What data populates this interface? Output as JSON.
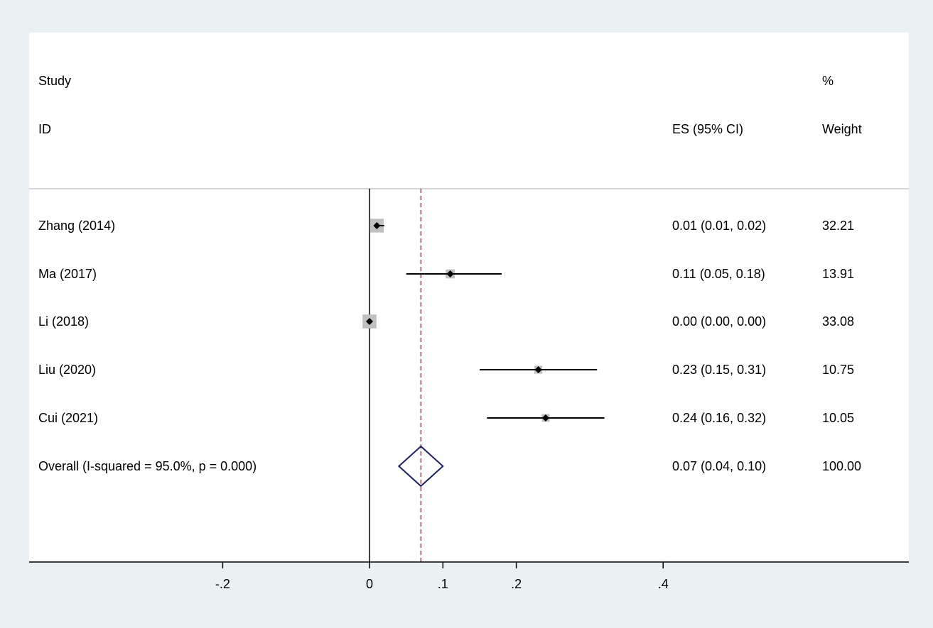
{
  "chart_data": {
    "type": "forest",
    "headers": {
      "study_line1": "Study",
      "study_line2": "ID",
      "es": "ES (95% CI)",
      "weight_line1": "%",
      "weight_line2": "Weight"
    },
    "studies": [
      {
        "label": "Zhang (2014)",
        "es": 0.01,
        "lower": 0.01,
        "upper": 0.02,
        "es_text": "0.01 (0.01, 0.02)",
        "weight": 32.21,
        "weight_text": "32.21"
      },
      {
        "label": "Ma (2017)",
        "es": 0.11,
        "lower": 0.05,
        "upper": 0.18,
        "es_text": "0.11 (0.05, 0.18)",
        "weight": 13.91,
        "weight_text": "13.91"
      },
      {
        "label": "Li (2018)",
        "es": 0.0,
        "lower": 0.0,
        "upper": 0.0,
        "es_text": "0.00 (0.00, 0.00)",
        "weight": 33.08,
        "weight_text": "33.08"
      },
      {
        "label": "Liu (2020)",
        "es": 0.23,
        "lower": 0.15,
        "upper": 0.31,
        "es_text": "0.23 (0.15, 0.31)",
        "weight": 10.75,
        "weight_text": "10.75"
      },
      {
        "label": "Cui (2021)",
        "es": 0.24,
        "lower": 0.16,
        "upper": 0.32,
        "es_text": "0.24 (0.16, 0.32)",
        "weight": 10.05,
        "weight_text": "10.05"
      }
    ],
    "overall": {
      "label": "Overall  (I-squared = 95.0%, p = 0.000)",
      "es": 0.07,
      "lower": 0.04,
      "upper": 0.1,
      "es_text": "0.07 (0.04, 0.10)",
      "weight_text": "100.00"
    },
    "xticks": [
      {
        "value": -0.2,
        "label": "-.2"
      },
      {
        "value": 0,
        "label": "0"
      },
      {
        "value": 0.1,
        "label": ".1"
      },
      {
        "value": 0.2,
        "label": ".2"
      },
      {
        "value": 0.4,
        "label": ".4"
      }
    ],
    "null_line": 0,
    "colors": {
      "background": "#eaf1f3",
      "plot_area": "#ffffff",
      "weight_box": "#bfbfbf",
      "overall_diamond": "#1a1f6e",
      "overall_line": "#a0202a"
    }
  }
}
